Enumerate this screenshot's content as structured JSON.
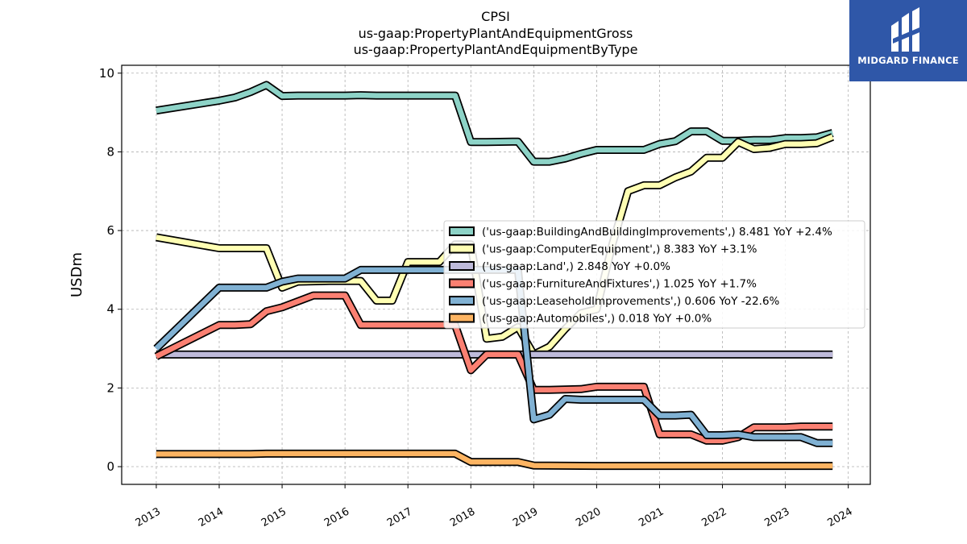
{
  "colors": {
    "BuildingAndBuildingImprovements": "#8dd3c7",
    "ComputerEquipment": "#ffffb3",
    "Land": "#bebada",
    "FurnitureAndFixtures": "#fb8072",
    "LeaseholdImprovements": "#80b1d3",
    "Automobiles": "#fdb462",
    "outline": "#000000",
    "grid": "#b0b0b0",
    "logo_bg": "#2f57a8"
  },
  "logo": {
    "text": "MIDGARD FINANCE",
    "icon": "midgard-logo-icon"
  },
  "chart_data": {
    "type": "line",
    "title": [
      "CPSI",
      "us-gaap:PropertyPlantAndEquipmentGross",
      "us-gaap:PropertyPlantAndEquipmentByType"
    ],
    "xlabel": "",
    "ylabel": "USDm",
    "xlim": [
      2012.45,
      2024.35
    ],
    "ylim": [
      -0.45,
      10.2
    ],
    "xticks": [
      2013,
      2014,
      2015,
      2016,
      2017,
      2018,
      2019,
      2020,
      2021,
      2022,
      2023,
      2024
    ],
    "yticks": [
      0,
      2,
      4,
      6,
      8,
      10
    ],
    "grid": true,
    "legend_position": "center-right",
    "series": [
      {
        "key": "BuildingAndBuildingImprovements",
        "legend": "('us-gaap:BuildingAndBuildingImprovements',) 8.481 YoY +2.4%",
        "points": [
          [
            2013.0,
            9.05
          ],
          [
            2014.0,
            9.3
          ],
          [
            2014.25,
            9.38
          ],
          [
            2014.5,
            9.52
          ],
          [
            2014.75,
            9.7
          ],
          [
            2015.0,
            9.42
          ],
          [
            2015.25,
            9.43
          ],
          [
            2016.0,
            9.43
          ],
          [
            2016.25,
            9.44
          ],
          [
            2016.5,
            9.43
          ],
          [
            2017.0,
            9.43
          ],
          [
            2017.75,
            9.43
          ],
          [
            2018.0,
            8.25
          ],
          [
            2018.25,
            8.25
          ],
          [
            2018.75,
            8.26
          ],
          [
            2019.0,
            7.75
          ],
          [
            2019.25,
            7.75
          ],
          [
            2019.5,
            7.83
          ],
          [
            2019.75,
            7.95
          ],
          [
            2020.0,
            8.05
          ],
          [
            2020.5,
            8.05
          ],
          [
            2020.75,
            8.05
          ],
          [
            2021.0,
            8.2
          ],
          [
            2021.25,
            8.27
          ],
          [
            2021.5,
            8.52
          ],
          [
            2021.75,
            8.52
          ],
          [
            2022.0,
            8.28
          ],
          [
            2022.25,
            8.28
          ],
          [
            2022.5,
            8.3
          ],
          [
            2022.75,
            8.3
          ],
          [
            2023.0,
            8.35
          ],
          [
            2023.25,
            8.35
          ],
          [
            2023.5,
            8.37
          ],
          [
            2023.75,
            8.48
          ]
        ]
      },
      {
        "key": "ComputerEquipment",
        "legend": "('us-gaap:ComputerEquipment',) 8.383 YoY +3.1%",
        "points": [
          [
            2013.0,
            5.83
          ],
          [
            2014.0,
            5.55
          ],
          [
            2014.25,
            5.55
          ],
          [
            2014.75,
            5.55
          ],
          [
            2015.0,
            4.55
          ],
          [
            2015.25,
            4.7
          ],
          [
            2015.75,
            4.72
          ],
          [
            2016.0,
            4.72
          ],
          [
            2016.25,
            4.72
          ],
          [
            2016.5,
            4.22
          ],
          [
            2016.75,
            4.22
          ],
          [
            2017.0,
            5.2
          ],
          [
            2017.25,
            5.2
          ],
          [
            2017.5,
            5.2
          ],
          [
            2017.75,
            5.65
          ],
          [
            2018.0,
            5.65
          ],
          [
            2018.25,
            3.25
          ],
          [
            2018.5,
            3.3
          ],
          [
            2018.75,
            3.55
          ],
          [
            2019.0,
            2.85
          ],
          [
            2019.25,
            3.05
          ],
          [
            2019.5,
            3.5
          ],
          [
            2019.75,
            3.9
          ],
          [
            2020.0,
            4.0
          ],
          [
            2020.25,
            5.65
          ],
          [
            2020.5,
            7.0
          ],
          [
            2020.75,
            7.15
          ],
          [
            2021.0,
            7.15
          ],
          [
            2021.25,
            7.35
          ],
          [
            2021.5,
            7.5
          ],
          [
            2021.75,
            7.85
          ],
          [
            2022.0,
            7.85
          ],
          [
            2022.25,
            8.25
          ],
          [
            2022.5,
            8.07
          ],
          [
            2022.75,
            8.1
          ],
          [
            2023.0,
            8.2
          ],
          [
            2023.25,
            8.2
          ],
          [
            2023.5,
            8.22
          ],
          [
            2023.75,
            8.38
          ]
        ]
      },
      {
        "key": "Land",
        "legend": "('us-gaap:Land',) 2.848 YoY +0.0%",
        "points": [
          [
            2013.0,
            2.85
          ],
          [
            2014.0,
            2.85
          ],
          [
            2015.0,
            2.85
          ],
          [
            2016.0,
            2.85
          ],
          [
            2017.0,
            2.85
          ],
          [
            2018.0,
            2.85
          ],
          [
            2019.0,
            2.85
          ],
          [
            2020.0,
            2.85
          ],
          [
            2021.0,
            2.85
          ],
          [
            2022.0,
            2.85
          ],
          [
            2023.0,
            2.85
          ],
          [
            2023.75,
            2.85
          ]
        ]
      },
      {
        "key": "FurnitureAndFixtures",
        "legend": "('us-gaap:FurnitureAndFixtures',) 1.025 YoY +1.7%",
        "points": [
          [
            2013.0,
            2.8
          ],
          [
            2014.0,
            3.6
          ],
          [
            2014.25,
            3.6
          ],
          [
            2014.5,
            3.62
          ],
          [
            2014.75,
            3.95
          ],
          [
            2015.0,
            4.05
          ],
          [
            2015.5,
            4.35
          ],
          [
            2016.0,
            4.35
          ],
          [
            2016.25,
            3.6
          ],
          [
            2016.5,
            3.6
          ],
          [
            2016.75,
            3.6
          ],
          [
            2017.0,
            3.6
          ],
          [
            2017.75,
            3.6
          ],
          [
            2018.0,
            2.45
          ],
          [
            2018.25,
            2.85
          ],
          [
            2018.75,
            2.85
          ],
          [
            2019.0,
            1.95
          ],
          [
            2019.25,
            1.95
          ],
          [
            2019.5,
            1.96
          ],
          [
            2019.75,
            1.97
          ],
          [
            2020.0,
            2.03
          ],
          [
            2020.75,
            2.03
          ],
          [
            2021.0,
            0.82
          ],
          [
            2021.25,
            0.82
          ],
          [
            2021.5,
            0.82
          ],
          [
            2021.75,
            0.66
          ],
          [
            2022.0,
            0.66
          ],
          [
            2022.25,
            0.75
          ],
          [
            2022.5,
            1.0
          ],
          [
            2022.75,
            1.0
          ],
          [
            2023.0,
            1.0
          ],
          [
            2023.25,
            1.02
          ],
          [
            2023.75,
            1.02
          ]
        ]
      },
      {
        "key": "LeaseholdImprovements",
        "legend": "('us-gaap:LeaseholdImprovements',) 0.606 YoY -22.6%",
        "points": [
          [
            2013.0,
            3.0
          ],
          [
            2014.0,
            4.55
          ],
          [
            2014.25,
            4.55
          ],
          [
            2014.75,
            4.55
          ],
          [
            2015.0,
            4.7
          ],
          [
            2015.25,
            4.78
          ],
          [
            2015.75,
            4.78
          ],
          [
            2016.0,
            4.78
          ],
          [
            2016.25,
            5.0
          ],
          [
            2016.75,
            5.0
          ],
          [
            2017.0,
            5.0
          ],
          [
            2017.75,
            5.0
          ],
          [
            2018.0,
            5.0
          ],
          [
            2018.25,
            5.0
          ],
          [
            2018.75,
            5.0
          ],
          [
            2019.0,
            1.2
          ],
          [
            2019.25,
            1.32
          ],
          [
            2019.5,
            1.72
          ],
          [
            2019.75,
            1.7
          ],
          [
            2020.0,
            1.7
          ],
          [
            2020.75,
            1.7
          ],
          [
            2021.0,
            1.3
          ],
          [
            2021.25,
            1.3
          ],
          [
            2021.5,
            1.32
          ],
          [
            2021.75,
            0.8
          ],
          [
            2022.0,
            0.8
          ],
          [
            2022.25,
            0.82
          ],
          [
            2022.5,
            0.75
          ],
          [
            2022.75,
            0.75
          ],
          [
            2023.0,
            0.75
          ],
          [
            2023.25,
            0.75
          ],
          [
            2023.5,
            0.6
          ],
          [
            2023.75,
            0.6
          ]
        ]
      },
      {
        "key": "Automobiles",
        "legend": "('us-gaap:Automobiles',) 0.018 YoY +0.0%",
        "points": [
          [
            2013.0,
            0.32
          ],
          [
            2014.0,
            0.32
          ],
          [
            2014.5,
            0.32
          ],
          [
            2014.75,
            0.33
          ],
          [
            2015.0,
            0.33
          ],
          [
            2016.0,
            0.33
          ],
          [
            2017.0,
            0.33
          ],
          [
            2017.75,
            0.33
          ],
          [
            2018.0,
            0.12
          ],
          [
            2018.75,
            0.12
          ],
          [
            2019.0,
            0.03
          ],
          [
            2020.0,
            0.02
          ],
          [
            2021.0,
            0.02
          ],
          [
            2022.0,
            0.02
          ],
          [
            2023.0,
            0.02
          ],
          [
            2023.75,
            0.02
          ]
        ]
      }
    ]
  }
}
